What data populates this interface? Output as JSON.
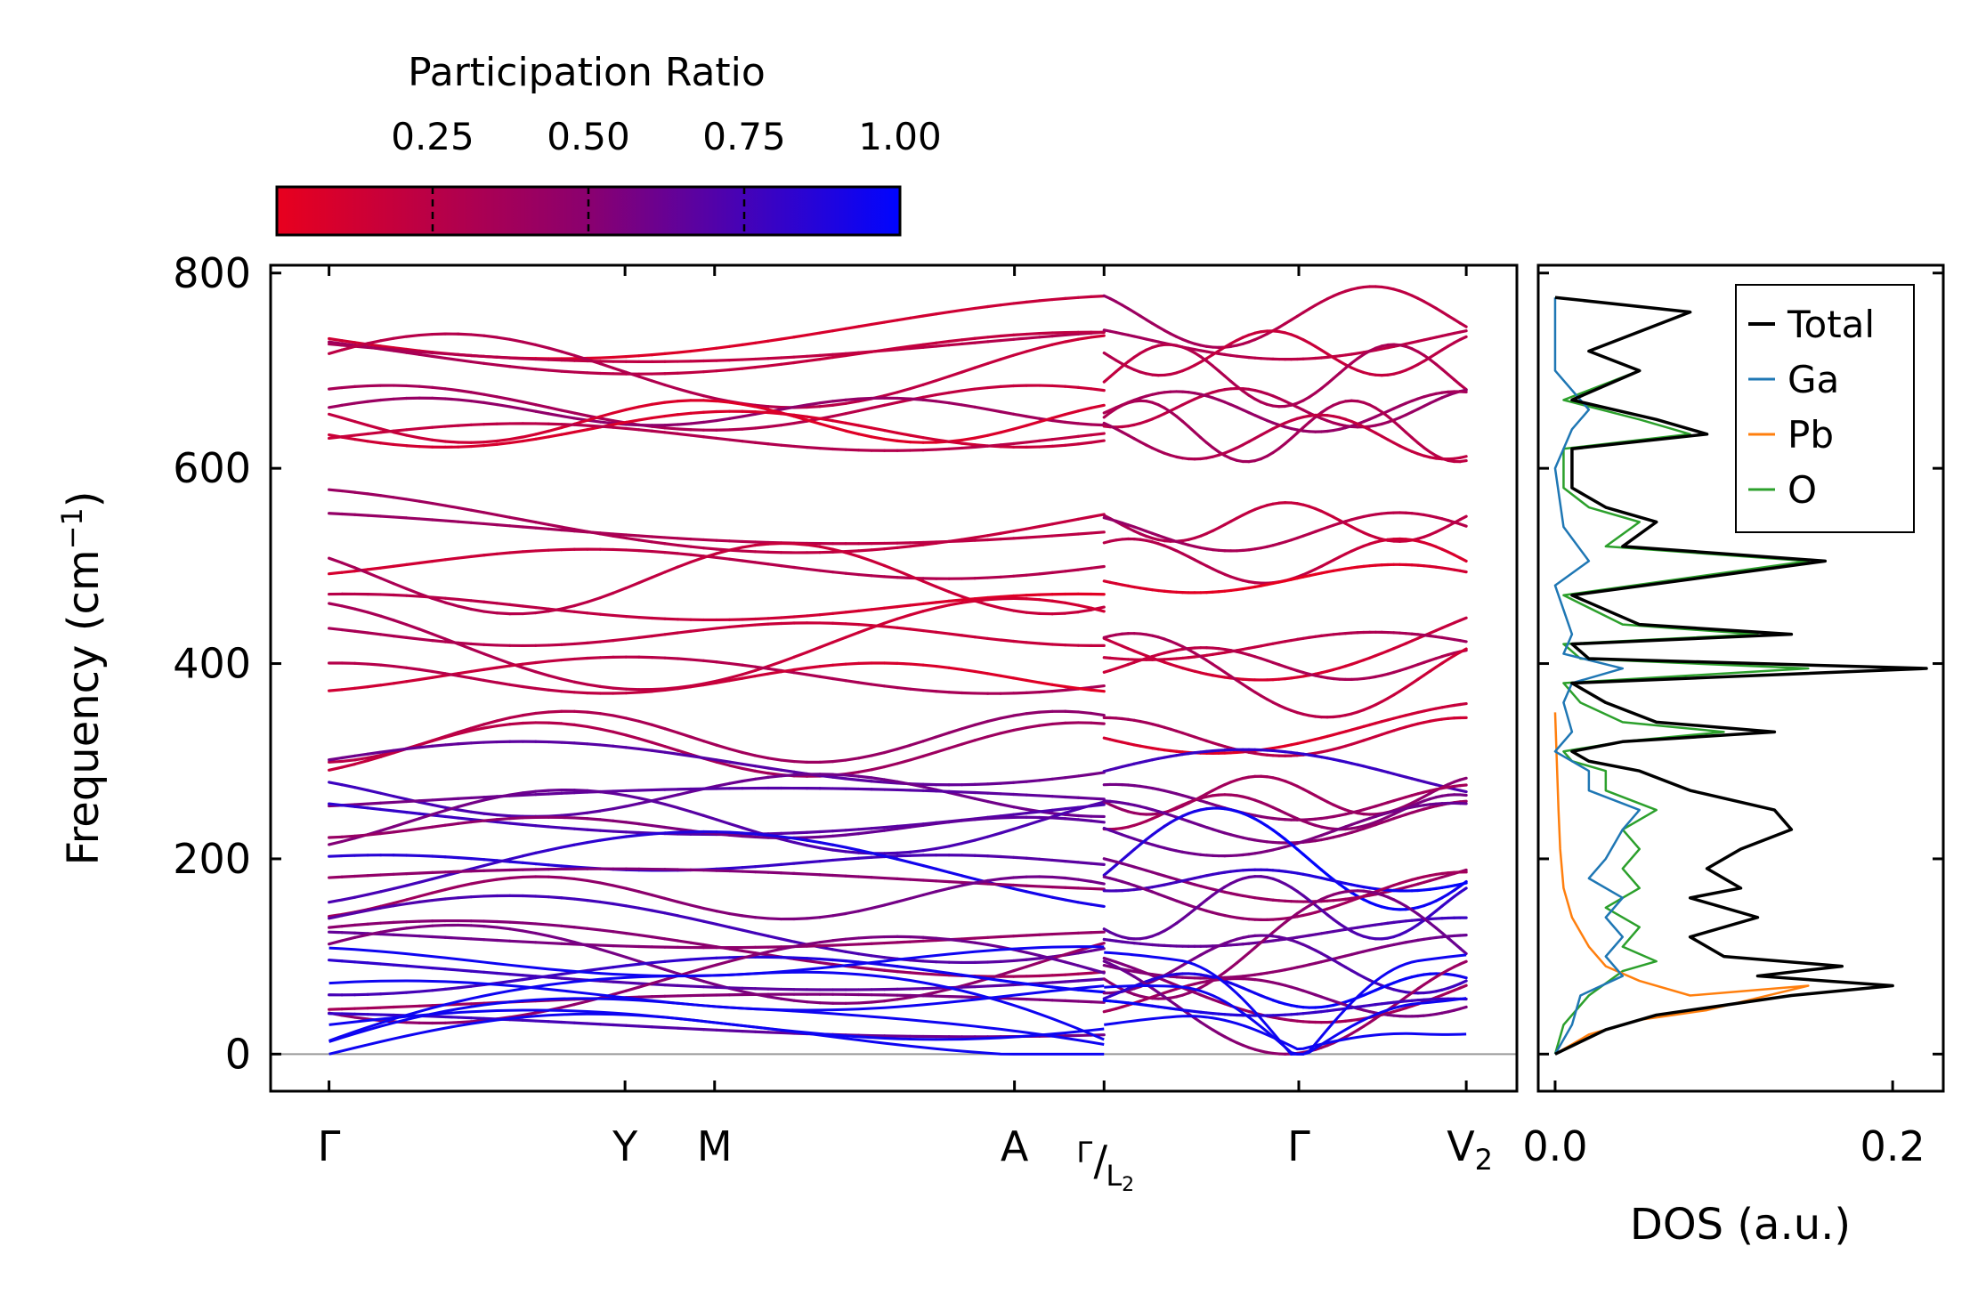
{
  "chart_data": [
    {
      "type": "line",
      "title": "",
      "xlabel": "",
      "ylabel": "Frequency (cm⁻¹)",
      "ylabel_parts": {
        "main": "Frequency (cm",
        "sup": "−1",
        "close": ")"
      },
      "ylim": [
        -38,
        808
      ],
      "yticks": [
        0,
        200,
        400,
        600,
        800
      ],
      "xticks": [
        {
          "pos": 0,
          "label": "Γ"
        },
        {
          "pos": 1.52,
          "label": "Y"
        },
        {
          "pos": 1.98,
          "label": "M"
        },
        {
          "pos": 3.52,
          "label": "A"
        },
        {
          "pos": 3.98,
          "label": "Γ/L2",
          "top": "Γ",
          "slash": "/",
          "bottom": "L",
          "bottom_sub": "2"
        },
        {
          "pos": 4.98,
          "label": "Γ"
        },
        {
          "pos": 5.84,
          "label": "V2",
          "main": "V",
          "sub": "2"
        }
      ],
      "xlim": [
        -0.3,
        6.1
      ],
      "segments": [
        {
          "start": 0,
          "end": 3.98
        },
        {
          "start": 3.98,
          "end": 5.84
        }
      ],
      "zero_line": 0,
      "colorbar": {
        "label": "Participation Ratio",
        "range": [
          0.0,
          1.0
        ],
        "ticks": [
          "0.25",
          "0.50",
          "0.75",
          "1.00"
        ],
        "tick_values": [
          0.25,
          0.5,
          0.75,
          1.0
        ],
        "low_color": "#e8001e",
        "mid_color": "#8a006f",
        "high_color": "#0005ff"
      },
      "description": "Phonon dispersion colored by participation ratio; ~40 branches per segment, acoustic branches near 0 at Γ in blue, high-frequency optical branches (300-760) in red/magenta"
    },
    {
      "type": "line",
      "title": "",
      "xlabel": "DOS (a.u.)",
      "ylabel": "",
      "xlim": [
        -0.01,
        0.23
      ],
      "ylim": [
        -38,
        808
      ],
      "xticks": [
        {
          "value": 0.0,
          "label": "0.0"
        },
        {
          "value": 0.2,
          "label": "0.2"
        }
      ],
      "legend": {
        "position": "top-right",
        "entries": [
          "Total",
          "Ga",
          "Pb",
          "O"
        ]
      },
      "series": [
        {
          "name": "Total",
          "color": "#000000",
          "points": [
            [
              0,
              0
            ],
            [
              0.03,
              25
            ],
            [
              0.06,
              40
            ],
            [
              0.1,
              50
            ],
            [
              0.14,
              60
            ],
            [
              0.2,
              70
            ],
            [
              0.12,
              80
            ],
            [
              0.17,
              90
            ],
            [
              0.1,
              100
            ],
            [
              0.08,
              120
            ],
            [
              0.12,
              140
            ],
            [
              0.08,
              160
            ],
            [
              0.11,
              170
            ],
            [
              0.09,
              190
            ],
            [
              0.11,
              210
            ],
            [
              0.14,
              230
            ],
            [
              0.13,
              250
            ],
            [
              0.08,
              270
            ],
            [
              0.05,
              290
            ],
            [
              0.02,
              300
            ],
            [
              0.01,
              310
            ],
            [
              0.04,
              320
            ],
            [
              0.13,
              330
            ],
            [
              0.06,
              340
            ],
            [
              0.03,
              360
            ],
            [
              0.01,
              380
            ],
            [
              0.22,
              395
            ],
            [
              0.02,
              405
            ],
            [
              0.01,
              420
            ],
            [
              0.14,
              430
            ],
            [
              0.05,
              440
            ],
            [
              0.01,
              470
            ],
            [
              0.16,
              505
            ],
            [
              0.04,
              520
            ],
            [
              0.06,
              545
            ],
            [
              0.03,
              560
            ],
            [
              0.01,
              580
            ],
            [
              0.01,
              620
            ],
            [
              0.09,
              635
            ],
            [
              0.06,
              650
            ],
            [
              0.01,
              670
            ],
            [
              0.05,
              700
            ],
            [
              0.02,
              720
            ],
            [
              0.08,
              760
            ],
            [
              0.0,
              775
            ]
          ]
        },
        {
          "name": "Ga",
          "color": "#1f77b4",
          "points": [
            [
              0,
              0
            ],
            [
              0.01,
              30
            ],
            [
              0.015,
              60
            ],
            [
              0.04,
              80
            ],
            [
              0.03,
              100
            ],
            [
              0.04,
              120
            ],
            [
              0.03,
              140
            ],
            [
              0.04,
              160
            ],
            [
              0.02,
              180
            ],
            [
              0.03,
              200
            ],
            [
              0.04,
              230
            ],
            [
              0.05,
              250
            ],
            [
              0.02,
              270
            ],
            [
              0.02,
              290
            ],
            [
              0.0,
              310
            ],
            [
              0.01,
              330
            ],
            [
              0.005,
              360
            ],
            [
              0.01,
              380
            ],
            [
              0.04,
              395
            ],
            [
              0.005,
              410
            ],
            [
              0.01,
              430
            ],
            [
              0.0,
              480
            ],
            [
              0.02,
              505
            ],
            [
              0.005,
              540
            ],
            [
              0.0,
              600
            ],
            [
              0.01,
              640
            ],
            [
              0.02,
              660
            ],
            [
              0.0,
              700
            ],
            [
              0.0,
              775
            ]
          ]
        },
        {
          "name": "Pb",
          "color": "#ff7f0e",
          "points": [
            [
              0,
              0
            ],
            [
              0.02,
              20
            ],
            [
              0.05,
              35
            ],
            [
              0.09,
              45
            ],
            [
              0.15,
              70
            ],
            [
              0.08,
              60
            ],
            [
              0.05,
              75
            ],
            [
              0.03,
              90
            ],
            [
              0.02,
              110
            ],
            [
              0.01,
              140
            ],
            [
              0.005,
              170
            ],
            [
              0.003,
              210
            ],
            [
              0.002,
              250
            ],
            [
              0.001,
              300
            ],
            [
              0.0,
              350
            ]
          ]
        },
        {
          "name": "O",
          "color": "#2ca02c",
          "points": [
            [
              0,
              0
            ],
            [
              0.005,
              30
            ],
            [
              0.02,
              60
            ],
            [
              0.04,
              85
            ],
            [
              0.06,
              95
            ],
            [
              0.04,
              110
            ],
            [
              0.05,
              130
            ],
            [
              0.03,
              150
            ],
            [
              0.05,
              170
            ],
            [
              0.04,
              190
            ],
            [
              0.05,
              210
            ],
            [
              0.04,
              230
            ],
            [
              0.06,
              250
            ],
            [
              0.03,
              270
            ],
            [
              0.03,
              290
            ],
            [
              0.01,
              300
            ],
            [
              0.005,
              310
            ],
            [
              0.04,
              320
            ],
            [
              0.1,
              330
            ],
            [
              0.04,
              340
            ],
            [
              0.015,
              360
            ],
            [
              0.005,
              380
            ],
            [
              0.15,
              395
            ],
            [
              0.015,
              405
            ],
            [
              0.005,
              420
            ],
            [
              0.12,
              430
            ],
            [
              0.04,
              440
            ],
            [
              0.005,
              470
            ],
            [
              0.15,
              505
            ],
            [
              0.03,
              520
            ],
            [
              0.05,
              545
            ],
            [
              0.02,
              560
            ],
            [
              0.005,
              580
            ],
            [
              0.005,
              620
            ],
            [
              0.08,
              635
            ],
            [
              0.05,
              650
            ],
            [
              0.005,
              670
            ],
            [
              0.05,
              700
            ],
            [
              0.02,
              720
            ],
            [
              0.08,
              760
            ],
            [
              0.0,
              775
            ]
          ]
        }
      ]
    }
  ]
}
